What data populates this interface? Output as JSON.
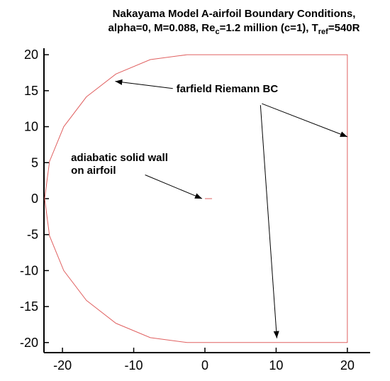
{
  "chart_data": {
    "type": "line",
    "title": [
      "Nakayama Model A-airfoil Boundary Conditions,",
      [
        "alpha=0, M=0.088, Re",
        "c",
        "=1.2 million (c=1), T",
        "ref",
        "=540R"
      ]
    ],
    "series": [
      {
        "color": "#e06060",
        "x": [
          -2.5,
          -7.676,
          -12.5,
          -16.642,
          -19.821,
          -21.819,
          -22.5,
          -21.819,
          -19.821,
          -16.642,
          -12.5,
          -7.676,
          -2.5,
          20,
          20,
          -2.5
        ],
        "values": [
          20,
          19.319,
          17.321,
          14.142,
          10,
          5.176,
          0,
          -5.176,
          -10,
          -14.142,
          -17.321,
          -19.319,
          -20,
          -20,
          20,
          20
        ]
      },
      {
        "color": "#e06060",
        "x": [
          0,
          1
        ],
        "values": [
          0,
          0
        ]
      }
    ],
    "annotations": [
      {
        "text": [
          "farfield Riemann BC"
        ],
        "x": -4,
        "y": 14.8,
        "arrows": [
          {
            "from": [
              -4.5,
              15.3
            ],
            "to": [
              -12.6,
              16.3
            ]
          },
          {
            "from": [
              8,
              13.2
            ],
            "to": [
              20,
              8.6
            ]
          },
          {
            "from": [
              7.8,
              13
            ],
            "to": [
              10.1,
              -19.4
            ]
          }
        ]
      },
      {
        "text": [
          "adiabatic solid wall",
          "on airfoil"
        ],
        "x": -18.8,
        "y": 5.2,
        "arrows": [
          {
            "from": [
              -8.4,
              3.3
            ],
            "to": [
              -0.4,
              0
            ]
          }
        ]
      }
    ],
    "xlim": [
      -22.6,
      23.2
    ],
    "ylim": [
      -21.4,
      20.9
    ],
    "xticks": [
      -20,
      -10,
      0,
      10,
      20
    ],
    "yticks": [
      20,
      15,
      10,
      5,
      0,
      -5,
      -10,
      -15,
      -20
    ]
  }
}
